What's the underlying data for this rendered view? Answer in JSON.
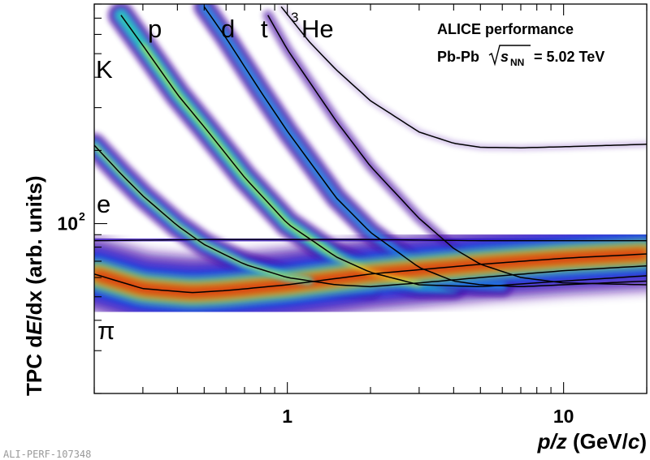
{
  "chart_data": {
    "type": "heatmap",
    "title": "",
    "xlabel": "p/z (GeV/c)",
    "ylabel": "TPC dE/dx (arb. units)",
    "x_scale": "log",
    "y_scale": "log",
    "xlim": [
      0.2,
      20
    ],
    "ylim": [
      20,
      800
    ],
    "x_ticks": [
      {
        "value": 1,
        "label": "1"
      },
      {
        "value": 10,
        "label": "10"
      }
    ],
    "y_ticks": [
      {
        "value": 100,
        "label": "10",
        "exponent": "2"
      }
    ],
    "legend": {
      "placement": "top-right",
      "line1": "ALICE performance",
      "line2_prefix": "Pb-Pb",
      "line2_sqrt": "s",
      "line2_subscript": "NN",
      "line2_suffix": "= 5.02 TeV"
    },
    "species_labels": [
      {
        "text": "p",
        "sup": ""
      },
      {
        "text": "d",
        "sup": ""
      },
      {
        "text": "t",
        "sup": ""
      },
      {
        "text": "He",
        "sup": "3"
      },
      {
        "text": "K",
        "sup": ""
      },
      {
        "text": "e",
        "sup": ""
      },
      {
        "text": "π",
        "sup": ""
      }
    ],
    "series": [
      {
        "name": "π",
        "x": [
          0.2,
          0.3,
          0.45,
          0.6,
          1,
          2,
          5,
          10,
          20
        ],
        "y": [
          62,
          54,
          52,
          53,
          56,
          62,
          68,
          72,
          75
        ]
      },
      {
        "name": "K",
        "x": [
          0.2,
          0.25,
          0.3,
          0.4,
          0.5,
          0.7,
          1,
          1.5,
          2,
          3,
          5,
          10,
          20
        ],
        "y": [
          210,
          160,
          130,
          98,
          82,
          68,
          60,
          56,
          55,
          57,
          60,
          64,
          67
        ]
      },
      {
        "name": "p",
        "x": [
          0.25,
          0.3,
          0.4,
          0.5,
          0.7,
          1,
          1.5,
          2,
          3,
          5,
          10,
          20
        ],
        "y": [
          720,
          540,
          340,
          250,
          155,
          100,
          73,
          63,
          56,
          55,
          58,
          61
        ]
      },
      {
        "name": "d",
        "x": [
          0.5,
          0.6,
          0.8,
          1,
          1.5,
          2,
          3,
          4,
          5,
          7,
          10,
          20
        ],
        "y": [
          780,
          580,
          350,
          240,
          128,
          92,
          66,
          58,
          56,
          55,
          56,
          58
        ]
      },
      {
        "name": "t",
        "x": [
          0.85,
          1,
          1.5,
          2,
          3,
          4,
          5,
          7,
          10,
          20
        ],
        "y": [
          720,
          520,
          265,
          172,
          105,
          79,
          68,
          60,
          57,
          56
        ]
      },
      {
        "name": "3He",
        "x": [
          0.95,
          1.2,
          1.5,
          2,
          3,
          4,
          5,
          7,
          10,
          20
        ],
        "y": [
          780,
          560,
          430,
          320,
          238,
          214,
          206,
          205,
          207,
          212
        ]
      },
      {
        "name": "e",
        "x": [
          0.2,
          0.5,
          1,
          2,
          5,
          10,
          20
        ],
        "y": [
          85,
          86,
          86,
          86,
          85,
          85,
          85
        ]
      }
    ]
  },
  "watermark": "ALI-PERF-107348"
}
